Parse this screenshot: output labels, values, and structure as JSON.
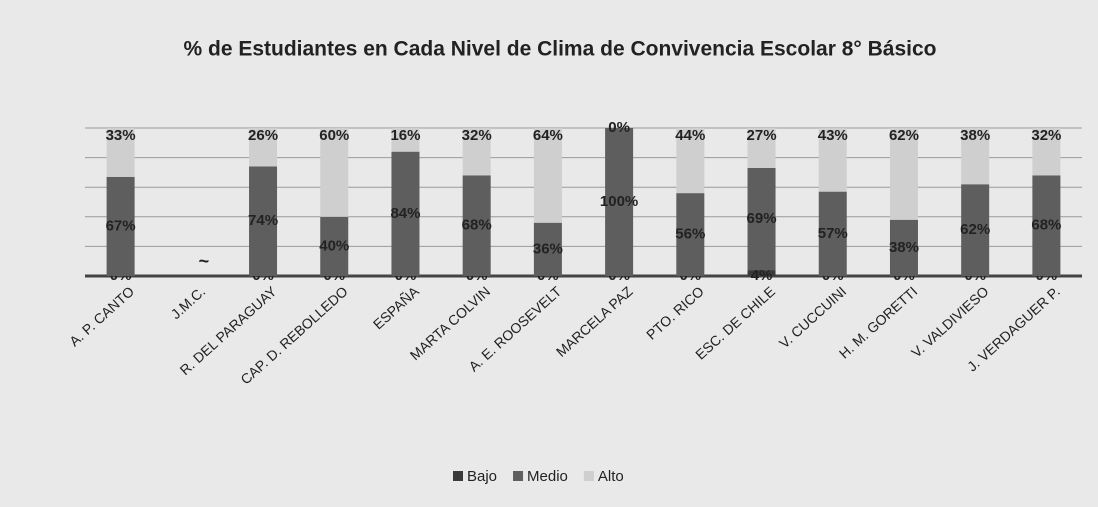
{
  "chart_data": {
    "type": "stacked_bar",
    "title": "% de Estudiantes en Cada Nivel de Clima de Convivencia Escolar 8° Básico",
    "categories": [
      "A. P. CANTO",
      "J.M.C.",
      "R. DEL PARAGUAY",
      "CAP. D. REBOLLEDO",
      "ESPAÑA",
      "MARTA COLVIN",
      "A. E. ROOSEVELT",
      "MARCELA PAZ",
      "PTO. RICO",
      "ESC. DE CHILE",
      "V. CUCCUINI",
      "H. M. GORETTI",
      "V. VALDIVIESO",
      "J. VERDAGUER P."
    ],
    "series": [
      {
        "name": "Bajo",
        "color": "#3a3a3a",
        "values": [
          0,
          null,
          0,
          0,
          0,
          0,
          0,
          0,
          0,
          4,
          0,
          0,
          0,
          0
        ],
        "value_labels": [
          "0%",
          null,
          "0%",
          "0%",
          "0%",
          "0%",
          "0%",
          "0%",
          "0%",
          "4%",
          "0%",
          "0%",
          "0%",
          "0%"
        ]
      },
      {
        "name": "Medio",
        "color": "#5e5e5e",
        "values": [
          67,
          null,
          74,
          40,
          84,
          68,
          36,
          100,
          56,
          69,
          57,
          38,
          62,
          68
        ],
        "value_labels": [
          "67%",
          null,
          "74%",
          "40%",
          "84%",
          "68%",
          "36%",
          "100%",
          "56%",
          "69%",
          "57%",
          "38%",
          "62%",
          "68%"
        ]
      },
      {
        "name": "Alto",
        "color": "#cfcfcf",
        "values": [
          33,
          null,
          26,
          60,
          16,
          32,
          64,
          0,
          44,
          27,
          43,
          62,
          38,
          32
        ],
        "value_labels": [
          "33%",
          null,
          "26%",
          "60%",
          "16%",
          "32%",
          "64%",
          "0%",
          "44%",
          "27%",
          "43%",
          "62%",
          "38%",
          "32%"
        ]
      }
    ],
    "annotations": [
      "~"
    ],
    "ylim": [
      0,
      100
    ],
    "yticks": [
      0,
      20,
      40,
      60,
      80,
      100
    ],
    "grid": true,
    "legend": "bottom"
  }
}
